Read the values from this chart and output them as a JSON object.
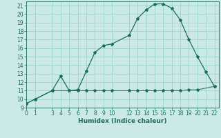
{
  "xlabel": "Humidex (Indice chaleur)",
  "bg_color": "#cceae5",
  "grid_color": "#99d4cc",
  "line_color": "#1a6b5e",
  "line1_x": [
    0,
    1,
    3,
    4,
    5,
    6,
    7,
    8,
    9,
    10,
    12,
    13,
    14,
    15,
    16,
    17,
    18,
    19,
    20,
    21,
    22
  ],
  "line1_y": [
    9.5,
    10.0,
    11.0,
    12.7,
    11.0,
    11.1,
    13.3,
    15.5,
    16.3,
    16.5,
    17.5,
    19.5,
    20.5,
    21.2,
    21.2,
    20.7,
    19.3,
    17.0,
    15.0,
    13.2,
    11.5
  ],
  "line2_x": [
    0,
    1,
    3,
    5,
    6,
    7,
    8,
    9,
    10,
    12,
    13,
    14,
    15,
    16,
    17,
    18,
    19,
    20,
    22
  ],
  "line2_y": [
    9.5,
    10.0,
    11.0,
    11.0,
    11.0,
    11.0,
    11.0,
    11.0,
    11.0,
    11.0,
    11.0,
    11.0,
    11.0,
    11.0,
    11.0,
    11.0,
    11.1,
    11.1,
    11.5
  ],
  "xlim": [
    0,
    22.5
  ],
  "ylim": [
    9,
    21.5
  ],
  "xticks": [
    0,
    1,
    3,
    4,
    5,
    6,
    7,
    8,
    9,
    10,
    12,
    13,
    14,
    15,
    16,
    17,
    18,
    19,
    20,
    21,
    22
  ],
  "yticks": [
    9,
    10,
    11,
    12,
    13,
    14,
    15,
    16,
    17,
    18,
    19,
    20,
    21
  ],
  "marker": "*",
  "markersize": 3.0,
  "linewidth1": 0.9,
  "linewidth2": 0.7,
  "tick_fontsize": 5.5,
  "xlabel_fontsize": 6.5
}
